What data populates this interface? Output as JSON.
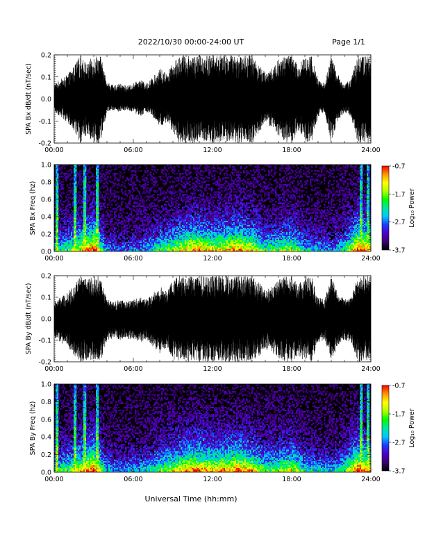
{
  "header": {
    "title": "2022/10/30  00:00-24:00 UT",
    "page": "Page 1/1"
  },
  "xlabel": "Universal Time (hh:mm)",
  "colors": {
    "trace": "#000000",
    "background": "#ffffff",
    "frame": "#000000"
  },
  "colorbar": {
    "label": "Log₁₀ Power",
    "ticks": [
      "-0.7",
      "-1.7",
      "-2.7",
      "-3.7"
    ],
    "range": [
      -3.7,
      -0.7
    ],
    "stops": [
      "#000000",
      "#3c0070",
      "#5000c8",
      "#1e3cff",
      "#00c8ff",
      "#00e6a0",
      "#00ff00",
      "#b4ff00",
      "#ffff00",
      "#ff9600",
      "#ff0000"
    ]
  },
  "chart_data": [
    {
      "type": "line",
      "ylabel": "SPA Bx dB/dt (nT/sec)",
      "xlim": [
        "00:00",
        "24:00"
      ],
      "ylim": [
        -0.2,
        0.2
      ],
      "x_ticks": [
        "00:00",
        "06:00",
        "12:00",
        "18:00",
        "24:00"
      ],
      "y_ticks": [
        "-0.2",
        "-0.1",
        "0.0",
        "0.1",
        "0.2"
      ],
      "x_hours": [
        0,
        0.5,
        1,
        1.5,
        2,
        2.5,
        3,
        3.5,
        4,
        4.5,
        5,
        5.5,
        6,
        6.5,
        7,
        7.5,
        8,
        8.5,
        9,
        9.5,
        10,
        10.5,
        11,
        11.5,
        12,
        12.5,
        13,
        13.5,
        14,
        14.5,
        15,
        15.5,
        16,
        16.5,
        17,
        17.5,
        18,
        18.5,
        19,
        19.5,
        20,
        20.5,
        21,
        21.5,
        22,
        22.5,
        23,
        23.5,
        24
      ],
      "envelope_upper": [
        0.07,
        0.09,
        0.11,
        0.15,
        0.2,
        0.16,
        0.2,
        0.2,
        0.08,
        0.06,
        0.07,
        0.06,
        0.07,
        0.09,
        0.07,
        0.1,
        0.14,
        0.12,
        0.16,
        0.2,
        0.2,
        0.2,
        0.2,
        0.2,
        0.2,
        0.2,
        0.2,
        0.2,
        0.2,
        0.2,
        0.2,
        0.16,
        0.12,
        0.14,
        0.18,
        0.2,
        0.2,
        0.15,
        0.2,
        0.2,
        0.09,
        0.07,
        0.2,
        0.11,
        0.07,
        0.09,
        0.2,
        0.2,
        0.2
      ],
      "envelope_lower": [
        -0.06,
        -0.08,
        -0.11,
        -0.15,
        -0.2,
        -0.16,
        -0.2,
        -0.2,
        -0.06,
        -0.05,
        -0.06,
        -0.05,
        -0.06,
        -0.08,
        -0.06,
        -0.09,
        -0.13,
        -0.11,
        -0.15,
        -0.2,
        -0.2,
        -0.2,
        -0.2,
        -0.2,
        -0.2,
        -0.2,
        -0.2,
        -0.2,
        -0.2,
        -0.2,
        -0.2,
        -0.16,
        -0.11,
        -0.13,
        -0.17,
        -0.2,
        -0.2,
        -0.14,
        -0.2,
        -0.2,
        -0.08,
        -0.06,
        -0.2,
        -0.1,
        -0.06,
        -0.08,
        -0.2,
        -0.2,
        -0.2
      ]
    },
    {
      "type": "heatmap",
      "ylabel": "SPA Bx Freq (hz)",
      "xlim": [
        "00:00",
        "24:00"
      ],
      "ylim": [
        0.0,
        1.0
      ],
      "x_ticks": [
        "00:00",
        "06:00",
        "12:00",
        "18:00",
        "24:00"
      ],
      "y_ticks": [
        "0.0",
        "0.2",
        "0.4",
        "0.6",
        "0.8",
        "1.0"
      ],
      "colorbar_label": "Log₁₀ Power",
      "activity_hours": [
        0,
        1,
        2,
        3,
        4,
        5,
        6,
        7,
        8,
        9,
        10,
        11,
        12,
        13,
        14,
        15,
        16,
        17,
        18,
        19,
        20,
        21,
        22,
        23,
        24
      ],
      "activity": [
        0.45,
        0.55,
        0.75,
        0.95,
        0.35,
        0.3,
        0.35,
        0.4,
        0.55,
        0.65,
        0.8,
        0.85,
        0.75,
        0.8,
        0.85,
        0.75,
        0.55,
        0.6,
        0.7,
        0.45,
        0.4,
        0.35,
        0.5,
        0.95,
        0.8
      ],
      "spike_hours": [
        0.2,
        1.6,
        2.3,
        3.25,
        23.3,
        23.8
      ]
    },
    {
      "type": "line",
      "ylabel": "SPA By dB/dt (nT/sec)",
      "xlim": [
        "00:00",
        "24:00"
      ],
      "ylim": [
        -0.2,
        0.2
      ],
      "x_ticks": [
        "00:00",
        "06:00",
        "12:00",
        "18:00",
        "24:00"
      ],
      "y_ticks": [
        "-0.2",
        "-0.1",
        "0.0",
        "0.1",
        "0.2"
      ],
      "x_hours": [
        0,
        0.5,
        1,
        1.5,
        2,
        2.5,
        3,
        3.5,
        4,
        4.5,
        5,
        5.5,
        6,
        6.5,
        7,
        7.5,
        8,
        8.5,
        9,
        9.5,
        10,
        10.5,
        11,
        11.5,
        12,
        12.5,
        13,
        13.5,
        14,
        14.5,
        15,
        15.5,
        16,
        16.5,
        17,
        17.5,
        18,
        18.5,
        19,
        19.5,
        20,
        20.5,
        21,
        21.5,
        22,
        22.5,
        23,
        23.5,
        24
      ],
      "envelope_upper": [
        0.08,
        0.1,
        0.12,
        0.16,
        0.2,
        0.18,
        0.2,
        0.2,
        0.09,
        0.08,
        0.09,
        0.08,
        0.09,
        0.1,
        0.09,
        0.12,
        0.15,
        0.13,
        0.18,
        0.2,
        0.2,
        0.2,
        0.2,
        0.2,
        0.2,
        0.2,
        0.2,
        0.2,
        0.2,
        0.2,
        0.2,
        0.17,
        0.13,
        0.15,
        0.18,
        0.2,
        0.2,
        0.16,
        0.2,
        0.2,
        0.1,
        0.09,
        0.2,
        0.12,
        0.09,
        0.1,
        0.2,
        0.2,
        0.2
      ],
      "envelope_lower": [
        -0.09,
        -0.11,
        -0.13,
        -0.17,
        -0.2,
        -0.19,
        -0.2,
        -0.2,
        -0.1,
        -0.09,
        -0.1,
        -0.09,
        -0.1,
        -0.11,
        -0.1,
        -0.13,
        -0.16,
        -0.14,
        -0.19,
        -0.2,
        -0.2,
        -0.2,
        -0.2,
        -0.2,
        -0.2,
        -0.2,
        -0.2,
        -0.2,
        -0.2,
        -0.2,
        -0.2,
        -0.18,
        -0.14,
        -0.16,
        -0.19,
        -0.2,
        -0.2,
        -0.17,
        -0.2,
        -0.2,
        -0.11,
        -0.1,
        -0.2,
        -0.13,
        -0.1,
        -0.11,
        -0.2,
        -0.2,
        -0.2
      ]
    },
    {
      "type": "heatmap",
      "ylabel": "SPA By Freq (hz)",
      "xlim": [
        "00:00",
        "24:00"
      ],
      "ylim": [
        0.0,
        1.0
      ],
      "x_ticks": [
        "00:00",
        "06:00",
        "12:00",
        "18:00",
        "24:00"
      ],
      "y_ticks": [
        "0.0",
        "0.2",
        "0.4",
        "0.6",
        "0.8",
        "1.0"
      ],
      "colorbar_label": "Log₁₀ Power",
      "activity_hours": [
        0,
        1,
        2,
        3,
        4,
        5,
        6,
        7,
        8,
        9,
        10,
        11,
        12,
        13,
        14,
        15,
        16,
        17,
        18,
        19,
        20,
        21,
        22,
        23,
        24
      ],
      "activity": [
        0.5,
        0.6,
        0.8,
        0.95,
        0.4,
        0.35,
        0.4,
        0.45,
        0.6,
        0.7,
        0.85,
        0.9,
        0.8,
        0.85,
        0.9,
        0.8,
        0.6,
        0.65,
        0.75,
        0.5,
        0.45,
        0.4,
        0.55,
        0.95,
        0.85
      ],
      "spike_hours": [
        0.2,
        1.6,
        2.3,
        3.25,
        23.3,
        23.8
      ]
    }
  ]
}
